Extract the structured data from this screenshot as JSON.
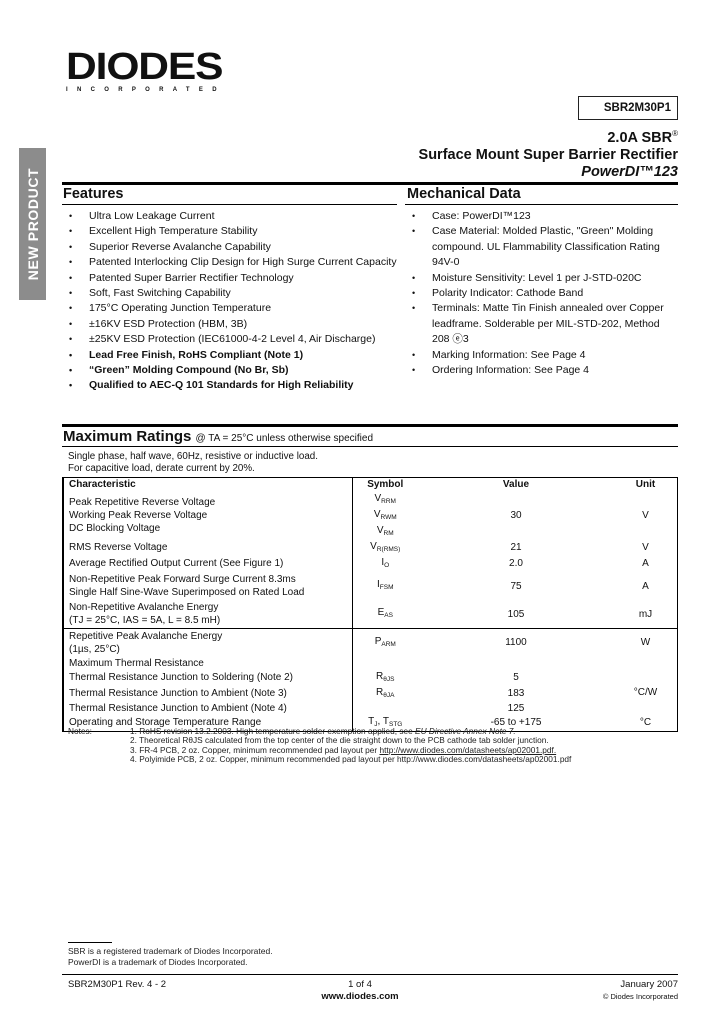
{
  "logo": {
    "name": "DIODES",
    "sub": "INCORPORATED"
  },
  "side_banner": "NEW PRODUCT",
  "part_number": "SBR2M30P1",
  "title": {
    "line1": "2.0A SBR",
    "reg": "®",
    "line2": "Surface Mount Super Barrier Rectifier",
    "line3": "PowerDI™123"
  },
  "features": {
    "heading": "Features",
    "items": [
      {
        "text": "Ultra Low Leakage Current",
        "bold": false
      },
      {
        "text": "Excellent High Temperature Stability",
        "bold": false
      },
      {
        "text": "Superior Reverse Avalanche Capability",
        "bold": false
      },
      {
        "text": "Patented Interlocking Clip Design for High Surge Current Capacity",
        "bold": false
      },
      {
        "text": "Patented Super Barrier Rectifier Technology",
        "bold": false
      },
      {
        "text": "Soft, Fast Switching Capability",
        "bold": false
      },
      {
        "text": "175°C Operating Junction Temperature",
        "bold": false
      },
      {
        "text": "±16KV ESD Protection (HBM, 3B)",
        "bold": false
      },
      {
        "text": "±25KV ESD Protection (IEC61000-4-2 Level 4, Air Discharge)",
        "bold": false
      },
      {
        "text": "Lead Free Finish, RoHS Compliant (Note 1)",
        "bold": true
      },
      {
        "text": "“Green” Molding Compound (No Br, Sb)",
        "bold": true
      },
      {
        "text": "Qualified to AEC-Q 101 Standards for High Reliability",
        "bold": true
      }
    ]
  },
  "mechanical": {
    "heading": "Mechanical Data",
    "items": [
      "Case: PowerDI™123",
      "Case Material:  Molded Plastic, \"Green\" Molding compound. UL Flammability Classification Rating 94V-0",
      "Moisture Sensitivity: Level 1 per J-STD-020C",
      "Polarity Indicator: Cathode Band",
      "Terminals: Matte Tin Finish annealed over Copper leadframe. Solderable per MIL-STD-202, Method 208 ⓔ3",
      "Marking Information: See Page 4",
      "Ordering Information: See Page 4"
    ]
  },
  "ratings": {
    "heading": "Maximum Ratings",
    "condition": "@ TA = 25°C unless otherwise specified",
    "intro1": "Single phase, half wave, 60Hz, resistive or inductive load.",
    "intro2": "For capacitive load, derate current by 20%.",
    "headers": {
      "char": "Characteristic",
      "sym": "Symbol",
      "val": "Value",
      "unit": "Unit"
    },
    "rows": [
      {
        "char": [
          "Peak Repetitive Reverse Voltage",
          "Working Peak Reverse Voltage",
          "DC Blocking Voltage"
        ],
        "sym": [
          [
            "V",
            "RRM"
          ],
          [
            "V",
            "RWM"
          ],
          [
            "V",
            "RM"
          ]
        ],
        "val": "30",
        "unit": "V"
      },
      {
        "char": [
          "RMS Reverse Voltage"
        ],
        "sym": [
          [
            "V",
            "R(RMS)"
          ]
        ],
        "val": "21",
        "unit": "V"
      },
      {
        "char": [
          "Average Rectified Output Current  (See Figure 1)"
        ],
        "sym": [
          [
            "I",
            "O"
          ]
        ],
        "val": "2.0",
        "unit": "A"
      },
      {
        "char": [
          "Non-Repetitive Peak Forward Surge Current 8.3ms",
          "Single Half Sine-Wave Superimposed on Rated Load"
        ],
        "sym": [
          [
            "I",
            "FSM"
          ]
        ],
        "val": "75",
        "unit": "A"
      },
      {
        "char": [
          "Non-Repetitive Avalanche Energy",
          "(TJ = 25°C, IAS = 5A, L = 8.5 mH)"
        ],
        "sym": [
          [
            "E",
            "AS"
          ]
        ],
        "val": "105",
        "unit": "mJ"
      },
      {
        "char": [
          "Repetitive Peak Avalanche Energy",
          "(1µs, 25°C)"
        ],
        "sym": [
          [
            "P",
            "ARM"
          ]
        ],
        "val": "1100",
        "unit": "W"
      },
      {
        "char": [
          "Maximum Thermal Resistance"
        ],
        "sym": [],
        "val": "",
        "unit": ""
      },
      {
        "char": [
          "Thermal Resistance Junction to Soldering (Note 2)"
        ],
        "sym": [
          [
            "R",
            "θJS"
          ]
        ],
        "val": "5",
        "unit": "°C/W"
      },
      {
        "char": [
          "Thermal Resistance Junction to Ambient (Note 3)"
        ],
        "sym": [
          [
            "R",
            "θJA"
          ]
        ],
        "val": "183",
        "unit": ""
      },
      {
        "char": [
          "Thermal Resistance Junction to Ambient (Note 4)"
        ],
        "sym": [],
        "val": "125",
        "unit": ""
      },
      {
        "char": [
          "Operating and Storage Temperature Range"
        ],
        "sym": [
          [
            "T",
            "J"
          ],
          [
            "T",
            "STG"
          ]
        ],
        "val": "-65 to +175",
        "unit": "°C"
      }
    ]
  },
  "notes": {
    "label": "Notes:",
    "items": [
      {
        "text": "1. RoHS revision 13.2.2003. High temperature solder exemption applied, see ",
        "em": "EU Directive Annex Note 7."
      },
      {
        "text": "2. Theoretical RθJS calculated from the top center of the die straight down to the PCB cathode tab solder junction."
      },
      {
        "text": "3. FR-4 PCB, 2 oz. Copper, minimum recommended pad layout per ",
        "link": "http://www.diodes.com/datasheets/ap02001.pdf."
      },
      {
        "text": "4. Polyimide PCB, 2 oz. Copper, minimum recommended pad layout per http://www.diodes.com/datasheets/ap02001.pdf"
      }
    ]
  },
  "trademarks": [
    "SBR is a registered trademark of Diodes Incorporated.",
    "PowerDI is a trademark of Diodes Incorporated."
  ],
  "footer": {
    "doc": "SBR2M30P1 Rev. 4 - 2",
    "page": "1 of 4",
    "url": "www.diodes.com",
    "date": "January 2007",
    "copyright": "© Diodes Incorporated"
  }
}
